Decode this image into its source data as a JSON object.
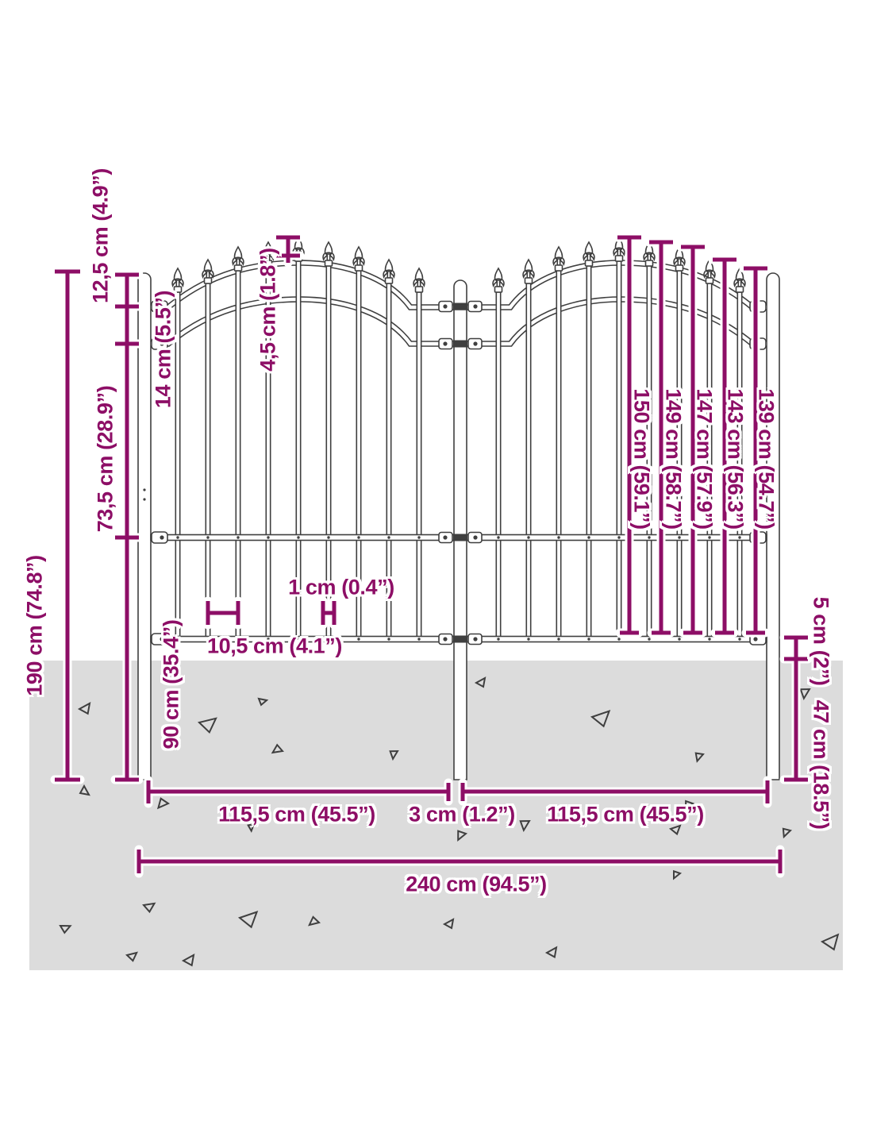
{
  "diagram": {
    "accent_color": "#8d0e66",
    "ground_color": "#dcdcdc",
    "line_color": "#3f3f3f",
    "measurements": {
      "overall_height": "190 cm (74.8”)",
      "post_top_to_first_rail": "12,5 cm (4.9”)",
      "rail_spacing": "14 cm (5.5”)",
      "spear_to_rail": "4,5 cm (1.8”)",
      "first_rail_to_mid_rail": "73,5 cm (28.9”)",
      "mid_rail_to_post_bottom": "90 cm (35.4”)",
      "picket_heights": [
        "150 cm (59.1”)",
        "149 cm (58.7”)",
        "147 cm (57.9”)",
        "143 cm (56.3”)",
        "139 cm (54.7”)"
      ],
      "bottom_rail_to_ground": "5 cm (2”)",
      "underground_depth": "47 cm (18.5”)",
      "picket_gap": "10,5 cm (4.1”)",
      "picket_width": "1 cm (0.4”)",
      "left_panel_width": "115,5 cm (45.5”)",
      "center_gap": "3 cm (1.2”)",
      "right_panel_width": "115,5 cm (45.5”)",
      "total_width": "240 cm (94.5”)"
    }
  }
}
